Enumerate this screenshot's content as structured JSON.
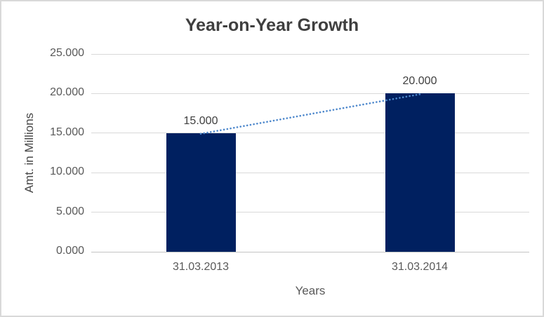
{
  "chart_data": {
    "type": "bar",
    "title": "Year-on-Year Growth",
    "categories": [
      "31.03.2013",
      "31.03.2014"
    ],
    "values": [
      15.0,
      20.0
    ],
    "value_labels": [
      "15.000",
      "20.000"
    ],
    "xlabel": "Years",
    "ylabel": "Amt. in Millions",
    "ylim": [
      0,
      25
    ],
    "yticks": [
      0,
      5,
      10,
      15,
      20,
      25
    ],
    "ytick_labels": [
      "0.000",
      "5.000",
      "10.000",
      "15.000",
      "20.000",
      "25.000"
    ],
    "grid": true,
    "legend": "none",
    "trendline": {
      "type": "linear",
      "style": "dotted",
      "connects": [
        15.0,
        20.0
      ]
    }
  },
  "colors": {
    "bar": "#002060",
    "trendline": "#4e88cc",
    "gridline": "#d9d9d9",
    "axis_line": "#c4c4c4",
    "title_text": "#3f3f3f",
    "axis_text": "#595959",
    "data_label_text": "#3f3f3f",
    "border": "#d9d9d9",
    "background": "#ffffff"
  }
}
